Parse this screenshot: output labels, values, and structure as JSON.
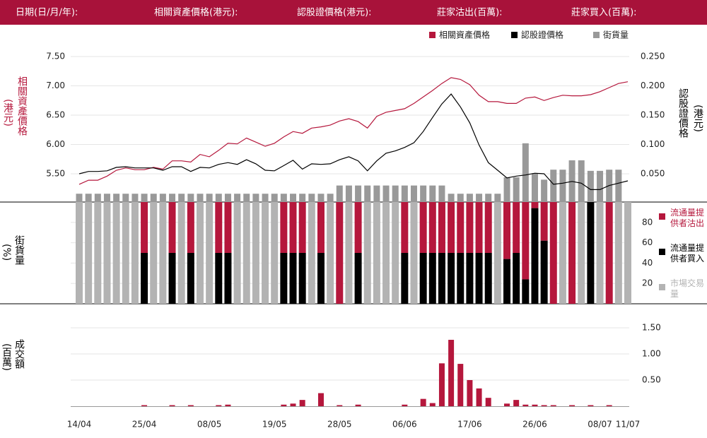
{
  "header": [
    "日期(日/月/年):",
    "相關資產價格(港元):",
    "認股證價格(港元):",
    "莊家沽出(百萬):",
    "莊家買入(百萬):"
  ],
  "chart_data": [
    {
      "type": "line",
      "ylabel": "相關資產價格",
      "yunit": "(港元)",
      "y2label": "認股證價格",
      "y2unit": "(港元)",
      "ylim": [
        5.0,
        7.5
      ],
      "yticks": [
        {
          "value": 5.5,
          "label": "5.50"
        },
        {
          "value": 6.0,
          "label": "6.00"
        },
        {
          "value": 6.5,
          "label": "6.50"
        },
        {
          "value": 7.0,
          "label": "7.00"
        },
        {
          "value": 7.5,
          "label": "7.50"
        }
      ],
      "y2lim": [
        0,
        0.25
      ],
      "y2ticks": [
        {
          "value": 0.05,
          "label": "0.050"
        },
        {
          "value": 0.1,
          "label": "0.100"
        },
        {
          "value": 0.15,
          "label": "0.150"
        },
        {
          "value": 0.2,
          "label": "0.200"
        },
        {
          "value": 0.25,
          "label": "0.250"
        }
      ],
      "grid": true,
      "series": [
        {
          "name": "相關資產價格",
          "color": "#b5173c",
          "values": [
            5.32,
            5.39,
            5.39,
            5.46,
            5.56,
            5.6,
            5.57,
            5.57,
            5.61,
            5.58,
            5.72,
            5.72,
            5.7,
            5.83,
            5.79,
            5.9,
            6.02,
            6.01,
            6.11,
            6.04,
            5.97,
            6.02,
            6.13,
            6.22,
            6.19,
            6.28,
            6.3,
            6.33,
            6.4,
            6.44,
            6.39,
            6.28,
            6.48,
            6.55,
            6.58,
            6.61,
            6.7,
            6.81,
            6.92,
            7.04,
            7.14,
            7.11,
            7.02,
            6.84,
            6.73,
            6.73,
            6.7,
            6.7,
            6.79,
            6.81,
            6.75,
            6.8,
            6.84,
            6.83,
            6.83,
            6.85,
            6.9,
            6.97,
            7.04,
            7.07
          ]
        },
        {
          "name": "認股證價格",
          "color": "#000000",
          "axis": "y2",
          "values": [
            0.05,
            0.054,
            0.054,
            0.055,
            0.061,
            0.062,
            0.06,
            0.06,
            0.06,
            0.056,
            0.062,
            0.062,
            0.054,
            0.061,
            0.06,
            0.066,
            0.069,
            0.066,
            0.074,
            0.067,
            0.056,
            0.055,
            0.064,
            0.073,
            0.058,
            0.067,
            0.066,
            0.067,
            0.074,
            0.079,
            0.072,
            0.055,
            0.072,
            0.085,
            0.089,
            0.095,
            0.103,
            0.122,
            0.146,
            0.169,
            0.186,
            0.164,
            0.137,
            0.099,
            0.069,
            0.056,
            0.043,
            0.046,
            0.048,
            0.051,
            0.05,
            0.032,
            0.034,
            0.037,
            0.034,
            0.023,
            0.023,
            0.03,
            0.034,
            0.038
          ]
        },
        {
          "name": "街貨量",
          "type": "bar",
          "color": "#999999",
          "axis": "y2",
          "values": [
            0.016,
            0.016,
            0.016,
            0.016,
            0.016,
            0.016,
            0.016,
            0.016,
            0.016,
            0.016,
            0.016,
            0.016,
            0.016,
            0.016,
            0.016,
            0.016,
            0.016,
            0.016,
            0.016,
            0.016,
            0.016,
            0.016,
            0.016,
            0.016,
            0.016,
            0.016,
            0.016,
            0.016,
            0.03,
            0.03,
            0.03,
            0.03,
            0.03,
            0.03,
            0.03,
            0.03,
            0.03,
            0.03,
            0.03,
            0.03,
            0.016,
            0.016,
            0.016,
            0.016,
            0.016,
            0.016,
            0.044,
            0.044,
            0.102,
            0.051,
            0.04,
            0.057,
            0.057,
            0.073,
            0.073,
            0.055,
            0.055,
            0.057,
            0.057,
            null
          ]
        }
      ]
    },
    {
      "type": "bar",
      "stacked": true,
      "ylabel": "街貨量",
      "yunit": "(%)",
      "ylim": [
        0,
        100
      ],
      "yticks": [
        20,
        40,
        60,
        80
      ],
      "grid": true,
      "series": [
        {
          "name": "流通量提供者沽出",
          "color": "#b5173c",
          "values": [
            0,
            0,
            0,
            0,
            0,
            0,
            0,
            50,
            0,
            0,
            50,
            0,
            50,
            0,
            0,
            50,
            50,
            0,
            0,
            0,
            0,
            0,
            50,
            50,
            50,
            0,
            50,
            0,
            100,
            0,
            50,
            0,
            0,
            0,
            0,
            50,
            0,
            50,
            50,
            50,
            50,
            50,
            50,
            50,
            50,
            0,
            56,
            50,
            76,
            6,
            38,
            100,
            0,
            100,
            0,
            0,
            0,
            100,
            0,
            0
          ]
        },
        {
          "name": "流通量提供者買入",
          "color": "#000000",
          "values": [
            0,
            0,
            0,
            0,
            0,
            0,
            0,
            50,
            0,
            0,
            50,
            0,
            50,
            0,
            0,
            50,
            50,
            0,
            0,
            0,
            0,
            0,
            50,
            50,
            50,
            0,
            50,
            0,
            0,
            0,
            50,
            0,
            0,
            0,
            0,
            50,
            0,
            50,
            50,
            50,
            50,
            50,
            50,
            50,
            50,
            0,
            44,
            50,
            24,
            94,
            62,
            0,
            0,
            0,
            0,
            100,
            0,
            0,
            0,
            0
          ]
        },
        {
          "name": "市場交易量",
          "color": "#b3b3b3",
          "values": [
            100,
            100,
            100,
            100,
            100,
            100,
            100,
            0,
            100,
            100,
            0,
            100,
            0,
            100,
            100,
            0,
            0,
            100,
            100,
            100,
            100,
            100,
            0,
            0,
            0,
            100,
            0,
            100,
            0,
            100,
            0,
            100,
            100,
            100,
            100,
            0,
            100,
            0,
            0,
            0,
            0,
            0,
            0,
            0,
            0,
            100,
            0,
            0,
            0,
            0,
            0,
            0,
            100,
            0,
            100,
            0,
            100,
            0,
            100,
            100
          ]
        }
      ]
    },
    {
      "type": "bar",
      "ylabel": "成交額",
      "yunit": "(百萬)",
      "ylim": [
        0,
        1.8
      ],
      "yticks": [
        {
          "value": 0.5,
          "label": "0.50"
        },
        {
          "value": 1.0,
          "label": "1.00"
        },
        {
          "value": 1.5,
          "label": "1.50"
        }
      ],
      "grid": true,
      "color": "#b5173c",
      "categories": [
        "14/04",
        null,
        null,
        null,
        null,
        null,
        null,
        "25/04",
        null,
        null,
        null,
        null,
        null,
        null,
        "08/05",
        null,
        null,
        null,
        null,
        null,
        null,
        "19/05",
        null,
        null,
        null,
        null,
        null,
        null,
        "28/05",
        null,
        null,
        null,
        null,
        null,
        null,
        "06/06",
        null,
        null,
        null,
        null,
        null,
        null,
        "17/06",
        null,
        null,
        null,
        null,
        null,
        null,
        "26/06",
        null,
        null,
        null,
        null,
        null,
        null,
        "08/07",
        null,
        null,
        "11/07"
      ],
      "values": [
        0,
        0,
        0,
        0,
        0,
        0,
        0,
        0.02,
        0,
        0,
        0.02,
        0,
        0.02,
        0,
        0,
        0.02,
        0.03,
        0,
        0,
        0,
        0,
        0,
        0.03,
        0.05,
        0.12,
        0,
        0.25,
        0,
        0.02,
        0,
        0.03,
        0,
        0,
        0,
        0,
        0.03,
        0,
        0.14,
        0.06,
        0.82,
        1.27,
        0.81,
        0.5,
        0.34,
        0.16,
        0,
        0.05,
        0.12,
        0.03,
        0.03,
        0.02,
        0.02,
        0,
        0.02,
        0,
        0.02,
        0,
        0.02,
        0,
        0
      ]
    }
  ]
}
